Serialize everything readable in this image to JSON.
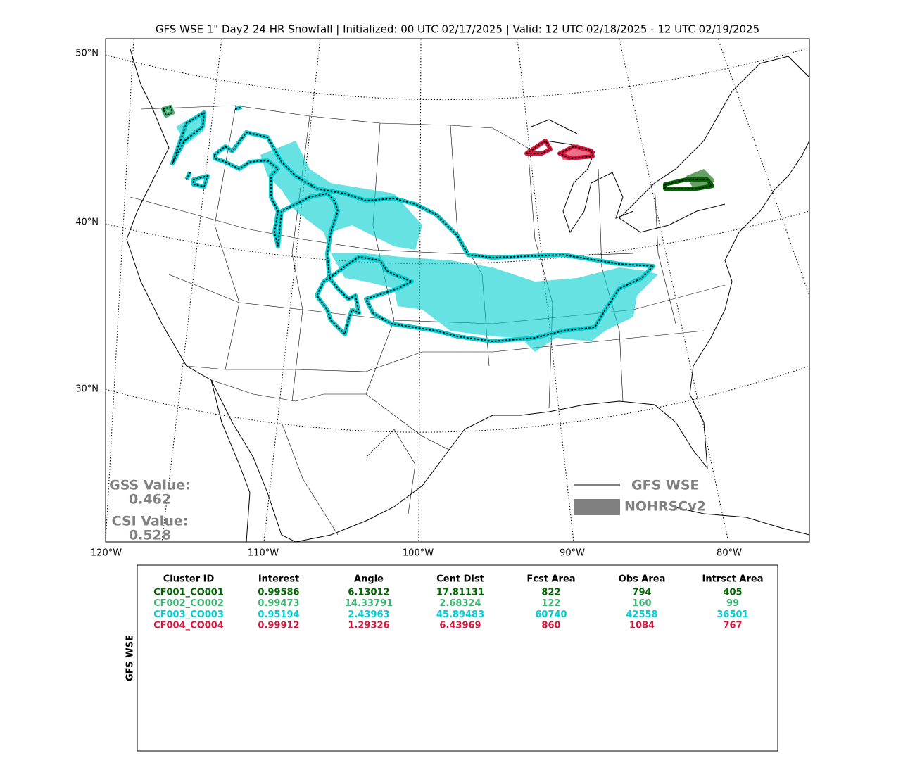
{
  "title": "GFS WSE 1\" Day2 24 HR Snowfall | Initialized: 00 UTC 02/17/2025 | Valid: 12 UTC 02/18/2025 - 12 UTC 02/19/2025",
  "axes": {
    "lat_labels": [
      "50°N",
      "40°N",
      "30°N"
    ],
    "lon_labels": [
      "120°W",
      "110°W",
      "100°W",
      "90°W",
      "80°W"
    ]
  },
  "scores": {
    "gss_label": "GSS Value:",
    "gss": "0.462",
    "csi_label": "CSI Value:",
    "csi": "0.528"
  },
  "legend": [
    "GFS WSE",
    "NOHRSCv2"
  ],
  "table": {
    "side_label": "GFS WSE",
    "columns": [
      "Cluster ID",
      "Interest",
      "Angle",
      "Cent Dist",
      "Fcst Area",
      "Obs Area",
      "Intrsct Area"
    ],
    "rows": [
      {
        "color": "#006400",
        "cells": [
          "CF001_CO001",
          "0.99586",
          "6.13012",
          "17.81131",
          "822",
          "794",
          "405"
        ]
      },
      {
        "color": "#3cb371",
        "cells": [
          "CF002_CO002",
          "0.99473",
          "14.33791",
          "2.68324",
          "122",
          "160",
          "99"
        ]
      },
      {
        "color": "#00ced1",
        "cells": [
          "CF003_CO003",
          "0.95194",
          "2.43963",
          "45.89483",
          "60740",
          "42558",
          "36501"
        ]
      },
      {
        "color": "#dc143c",
        "cells": [
          "CF004_CO004",
          "0.99912",
          "1.29326",
          "6.43969",
          "860",
          "1084",
          "767"
        ]
      }
    ]
  }
}
